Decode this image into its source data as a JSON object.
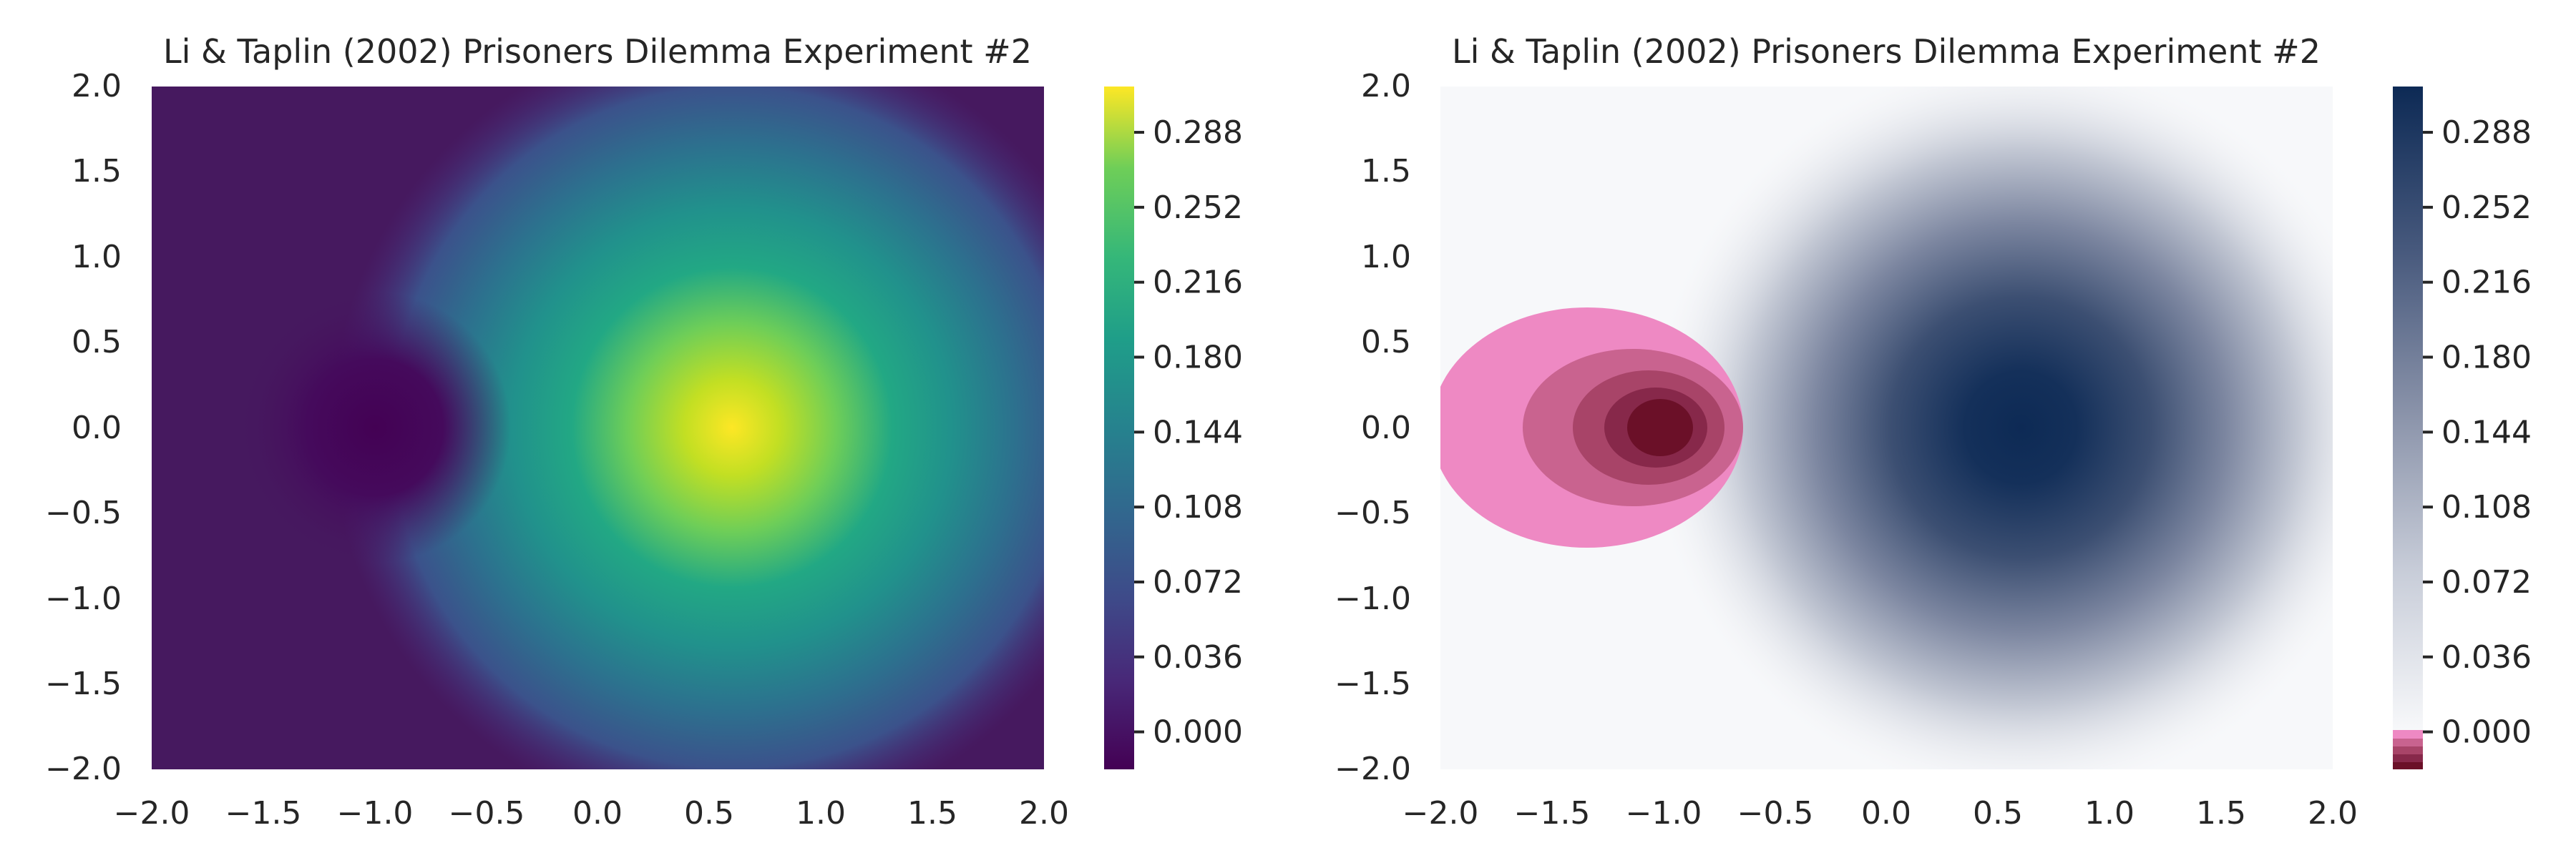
{
  "chart_data": [
    {
      "type": "heatmap",
      "title": "Li & Taplin (2002) Prisoners Dilemma Experiment #2",
      "xlim": [
        -2.0,
        2.0
      ],
      "ylim": [
        -2.0,
        2.0
      ],
      "x_ticks": [
        "−2.0",
        "−1.5",
        "−1.0",
        "−0.5",
        "0.0",
        "0.5",
        "1.0",
        "1.5",
        "2.0"
      ],
      "y_ticks": [
        "2.0",
        "1.5",
        "1.0",
        "0.5",
        "0.0",
        "−0.5",
        "−1.0",
        "−1.5",
        "−2.0"
      ],
      "colormap": "viridis",
      "colorbar": {
        "range": [
          -0.018,
          0.31
        ],
        "ticks": [
          0.0,
          0.036,
          0.072,
          0.108,
          0.144,
          0.18,
          0.216,
          0.252,
          0.288
        ],
        "tick_labels": [
          "0.000",
          "0.036",
          "0.072",
          "0.108",
          "0.144",
          "0.180",
          "0.216",
          "0.252",
          "0.288"
        ]
      },
      "peaks": [
        {
          "x": 0.6,
          "y": 0.0,
          "value": 0.31
        },
        {
          "x": -1.0,
          "y": 0.0,
          "value": -0.018
        }
      ],
      "grid": false
    },
    {
      "type": "heatmap",
      "title": "Li & Taplin (2002) Prisoners Dilemma Experiment #2",
      "xlim": [
        -2.0,
        2.0
      ],
      "ylim": [
        -2.0,
        2.0
      ],
      "x_ticks": [
        "−2.0",
        "−1.5",
        "−1.0",
        "−0.5",
        "0.0",
        "0.5",
        "1.0",
        "1.5",
        "2.0"
      ],
      "y_ticks": [
        "2.0",
        "1.5",
        "1.0",
        "0.5",
        "0.0",
        "−0.5",
        "−1.0",
        "−1.5",
        "−2.0"
      ],
      "colormap": "white-to-navy (positive), pink-to-maroon (negative)",
      "colorbar": {
        "range": [
          -0.018,
          0.31
        ],
        "ticks": [
          0.0,
          0.036,
          0.072,
          0.108,
          0.144,
          0.18,
          0.216,
          0.252,
          0.288
        ],
        "tick_labels": [
          "0.000",
          "0.036",
          "0.072",
          "0.108",
          "0.144",
          "0.180",
          "0.216",
          "0.252",
          "0.288"
        ]
      },
      "peaks": [
        {
          "x": 0.6,
          "y": 0.0,
          "value": 0.31
        },
        {
          "x": -1.0,
          "y": 0.0,
          "value": -0.018
        }
      ],
      "negative_contour_levels": [
        0.0,
        -0.004,
        -0.008,
        -0.012,
        -0.016
      ],
      "colors": {
        "positive_high": "#0d2a55",
        "positive_low": "#f7f8fa",
        "negative_levels": [
          "#ee89c3",
          "#c9638f",
          "#a84468",
          "#87284a",
          "#6b1028"
        ]
      },
      "grid": false
    }
  ]
}
